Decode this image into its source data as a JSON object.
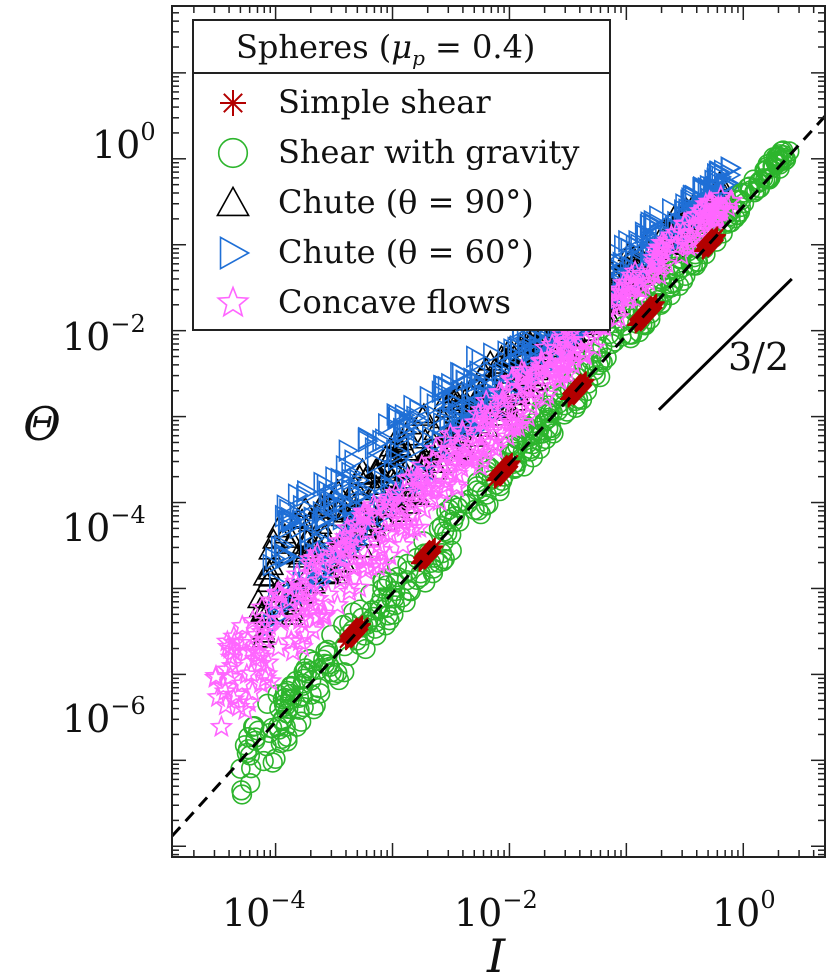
{
  "chart_data": {
    "type": "scatter",
    "title": "",
    "xlabel": "I",
    "ylabel": "Θ",
    "x_scale": "log",
    "y_scale": "log",
    "xlim": [
      1.3e-05,
      5
    ],
    "ylim": [
      7.5e-09,
      60
    ],
    "x_ticks": [
      {
        "base": "10",
        "exp": "−4",
        "value": 0.0001
      },
      {
        "base": "10",
        "exp": "−2",
        "value": 0.01
      },
      {
        "base": "10",
        "exp": "0",
        "value": 1
      }
    ],
    "y_ticks": [
      {
        "base": "10",
        "exp": "−6",
        "value": 1e-06
      },
      {
        "base": "10",
        "exp": "−4",
        "value": 0.0001
      },
      {
        "base": "10",
        "exp": "−2",
        "value": 0.01
      },
      {
        "base": "10",
        "exp": "0",
        "value": 1
      }
    ],
    "grid": false,
    "legend": {
      "placement": "top-left",
      "title": "Spheres (μp = 0.4)",
      "title_main": "Spheres (",
      "title_mu": "μ",
      "title_sub": "p",
      "title_rest": " = 0.4)",
      "entries": [
        {
          "label": "Simple shear",
          "marker": "asterisk",
          "color": "#b30000"
        },
        {
          "label": "Shear with gravity",
          "marker": "circle",
          "color": "#2db52d"
        },
        {
          "label": "Chute (θ = 90°)",
          "marker": "triangle-up",
          "color": "#000000"
        },
        {
          "label": "Chute (θ = 60°)",
          "marker": "triangle-right",
          "color": "#1f6fd6"
        },
        {
          "label": "Concave flows",
          "marker": "star",
          "color": "#ff66ff"
        }
      ]
    },
    "reference_line": {
      "style": "dashed",
      "color": "#000000",
      "coefficient": 0.28,
      "exponent": 1.5
    },
    "slope_indicator": {
      "label": "3/2",
      "x": [
        0.19,
        2.6
      ],
      "y": [
        0.0012,
        0.04
      ]
    },
    "series": [
      {
        "name": "Simple shear",
        "marker": "asterisk",
        "color": "#b30000",
        "clusters": [
          {
            "x": [
              0.0004,
              0.00055
            ],
            "c": 0.3
          },
          {
            "x": [
              0.0017,
              0.0023
            ],
            "c": 0.28
          },
          {
            "x": [
              0.0075,
              0.0105
            ],
            "c": 0.28
          },
          {
            "x": [
              0.032,
              0.045
            ],
            "c": 0.28
          },
          {
            "x": [
              0.12,
              0.18
            ],
            "c": 0.28
          },
          {
            "x": [
              0.45,
              0.6
            ],
            "c": 0.28
          }
        ]
      },
      {
        "name": "Shear with gravity",
        "marker": "circle",
        "color": "#2db52d",
        "band": {
          "x": [
            5e-05,
            2.6
          ],
          "a": 0.3,
          "b": 1.55,
          "spread": 1.6
        }
      },
      {
        "name": "Chute (θ = 90°)",
        "marker": "triangle-up",
        "color": "#000000",
        "band": {
          "x": [
            7e-05,
            0.7
          ],
          "a": 0.6,
          "b": 1.22,
          "spread": 2.5
        }
      },
      {
        "name": "Chute (θ = 60°)",
        "marker": "triangle-right",
        "color": "#1f6fd6",
        "band": {
          "x": [
            9e-05,
            0.8
          ],
          "a": 0.75,
          "b": 1.2,
          "spread": 2.8
        }
      },
      {
        "name": "Concave flows",
        "marker": "star",
        "color": "#ff66ff",
        "band": {
          "x": [
            3e-05,
            0.8
          ],
          "a": 0.5,
          "b": 1.35,
          "spread": 2.3
        }
      }
    ]
  }
}
